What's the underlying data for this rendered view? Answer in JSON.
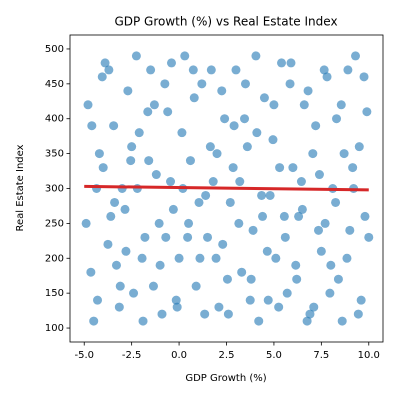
{
  "chart_data": {
    "type": "scatter",
    "title": "GDP Growth (%) vs Real Estate Index",
    "xlabel": "GDP Growth (%)",
    "ylabel": "Real Estate Index",
    "xlim": [
      -5.75,
      10.75
    ],
    "ylim": [
      80,
      520
    ],
    "xticks": [
      {
        "value": -5,
        "label": "-5.0"
      },
      {
        "value": -2.5,
        "label": "-2.5"
      },
      {
        "value": 0,
        "label": "0.0"
      },
      {
        "value": 2.5,
        "label": "2.5"
      },
      {
        "value": 5,
        "label": "5.0"
      },
      {
        "value": 7.5,
        "label": "7.5"
      },
      {
        "value": 10,
        "label": "10.0"
      }
    ],
    "yticks": [
      100,
      150,
      200,
      250,
      300,
      350,
      400,
      450,
      500
    ],
    "grid": false,
    "series": [
      {
        "type": "scatter",
        "color": "#1f77b4",
        "x": [
          -4.8,
          -4.5,
          -4.2,
          -3.9,
          -3.6,
          -3.3,
          -3.0,
          -2.7,
          -2.4,
          -2.1,
          -1.8,
          -1.5,
          -1.2,
          -0.9,
          -0.6,
          -0.3,
          0.0,
          0.3,
          0.6,
          0.9,
          1.2,
          1.5,
          1.8,
          2.1,
          2.4,
          2.7,
          3.0,
          3.3,
          3.6,
          3.9,
          4.2,
          4.5,
          4.8,
          5.1,
          5.4,
          5.7,
          6.0,
          6.3,
          6.6,
          6.9,
          7.2,
          7.5,
          7.8,
          8.1,
          8.4,
          8.7,
          9.0,
          9.3,
          9.6,
          9.9
        ],
        "values": [
          420,
          110,
          350,
          480,
          260,
          190,
          300,
          440,
          150,
          380,
          230,
          470,
          320,
          120,
          410,
          270,
          200,
          490,
          340,
          160,
          450,
          230,
          310,
          130,
          400,
          280,
          470,
          180,
          360,
          240,
          110,
          430,
          290,
          200,
          480,
          150,
          330,
          260,
          420,
          120,
          390,
          210,
          460,
          300,
          170,
          350,
          240,
          490,
          140,
          410
        ]
      },
      {
        "type": "scatter",
        "color": "#1f77b4",
        "x": [
          -4.65,
          -4.35,
          -4.05,
          -3.75,
          -3.45,
          -3.15,
          -2.85,
          -2.55,
          -2.25,
          -1.95,
          -1.65,
          -1.35,
          -1.05,
          -0.75,
          -0.45,
          -0.15,
          0.15,
          0.45,
          0.75,
          1.05,
          1.35,
          1.65,
          1.95,
          2.25,
          2.55,
          2.85,
          3.15,
          3.45,
          3.75,
          4.05,
          4.35,
          4.65,
          4.95,
          5.25,
          5.55,
          5.85,
          6.15,
          6.45,
          6.75,
          7.05,
          7.35,
          7.65,
          7.95,
          8.25,
          8.55,
          8.85,
          9.15,
          9.45,
          9.75,
          10.0
        ],
        "values": [
          180,
          300,
          460,
          220,
          390,
          130,
          270,
          340,
          490,
          200,
          410,
          160,
          250,
          450,
          310,
          140,
          380,
          230,
          470,
          280,
          120,
          360,
          200,
          440,
          170,
          330,
          250,
          400,
          140,
          490,
          290,
          210,
          370,
          130,
          260,
          450,
          190,
          310,
          110,
          350,
          240,
          470,
          150,
          280,
          420,
          200,
          330,
          120,
          460,
          230
        ]
      },
      {
        "type": "scatter",
        "color": "#1f77b4",
        "x": [
          -4.9,
          -4.6,
          -4.3,
          -4.0,
          -3.7,
          -3.4,
          -3.1,
          -2.8,
          -2.5,
          -2.2,
          -1.9,
          -1.6,
          -1.3,
          -1.0,
          -0.7,
          -0.4,
          -0.1,
          0.2,
          0.5,
          0.8,
          1.1,
          1.4,
          1.7,
          2.0,
          2.3,
          2.6,
          2.9,
          3.2,
          3.5,
          3.8,
          4.1,
          4.4,
          4.7,
          5.0,
          5.3,
          5.6,
          5.9,
          6.2,
          6.5,
          6.8,
          7.1,
          7.4,
          7.7,
          8.0,
          8.3,
          8.6,
          8.9,
          9.2,
          9.5,
          9.8
        ],
        "values": [
          250,
          390,
          140,
          330,
          470,
          280,
          160,
          210,
          360,
          300,
          110,
          340,
          420,
          190,
          230,
          480,
          130,
          300,
          250,
          430,
          200,
          290,
          470,
          350,
          220,
          120,
          390,
          310,
          450,
          170,
          380,
          260,
          140,
          420,
          330,
          230,
          480,
          170,
          270,
          440,
          130,
          320,
          250,
          190,
          400,
          110,
          470,
          300,
          360,
          260
        ]
      },
      {
        "type": "line",
        "color": "#d62728",
        "x": [
          -5,
          10
        ],
        "values": [
          303,
          298
        ]
      }
    ]
  }
}
